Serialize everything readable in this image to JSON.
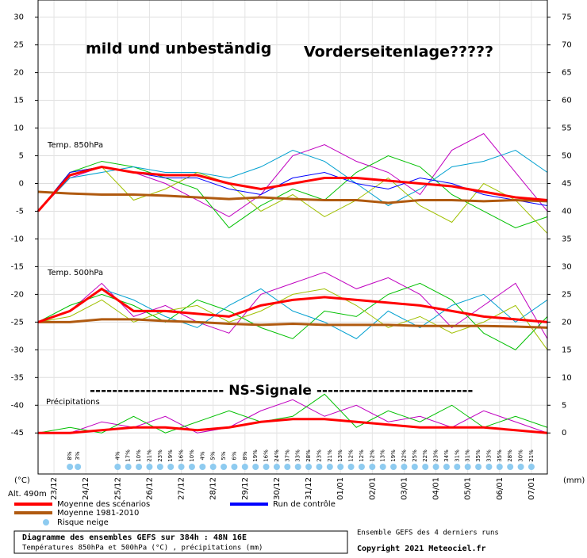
{
  "chart_data": {
    "type": "line",
    "annotations": [
      "mild und unbeständig",
      "Vorderseitenlage?????",
      "------------------------ NS-Signale ----------------------------"
    ],
    "panel_labels": [
      "Temp. 850hPa",
      "Temp. 500hPa",
      "Précipitations"
    ],
    "ylabel": "(°C)",
    "y2label": "(mm)",
    "altitude": "Alt. 490m",
    "footer": {
      "title": "Diagramme des ensembles GEFS sur 384h : 48N 16E",
      "subtitle": "Températures 850hPa et 500hPa (°C) , précipitations (mm)",
      "note": "Ensemble GEFS des 4 derniers runs",
      "copyright": "Copyright 2021 Meteociel.fr"
    },
    "xlim": [
      0,
      384
    ],
    "xticks": [
      {
        "value": 12,
        "label": "23/12"
      },
      {
        "value": 36,
        "label": "24/12"
      },
      {
        "value": 60,
        "label": "25/12"
      },
      {
        "value": 84,
        "label": "26/12"
      },
      {
        "value": 108,
        "label": "27/12"
      },
      {
        "value": 132,
        "label": "28/12"
      },
      {
        "value": 156,
        "label": "29/12"
      },
      {
        "value": 180,
        "label": "30/12"
      },
      {
        "value": 204,
        "label": "31/12"
      },
      {
        "value": 228,
        "label": "01/01"
      },
      {
        "value": 252,
        "label": "02/01"
      },
      {
        "value": 276,
        "label": "03/01"
      },
      {
        "value": 300,
        "label": "04/01"
      },
      {
        "value": 324,
        "label": "05/01"
      },
      {
        "value": 348,
        "label": "06/01"
      },
      {
        "value": 372,
        "label": "07/01"
      }
    ],
    "ylim": [
      -52.4,
      33.1
    ],
    "yticks": [
      30,
      25,
      20,
      15,
      10,
      5,
      0,
      -5,
      -10,
      -15,
      -20,
      -25,
      -30,
      -35,
      -40,
      -45
    ],
    "y2lim": [
      -7.4,
      78.1
    ],
    "y2ticks": [
      75,
      70,
      65,
      60,
      55,
      50,
      45,
      40,
      35,
      30,
      25,
      20,
      15,
      10,
      5,
      0
    ],
    "grid": true,
    "x": [
      0,
      24,
      48,
      72,
      96,
      120,
      144,
      168,
      192,
      216,
      240,
      264,
      288,
      312,
      336,
      360,
      384
    ],
    "series": [
      {
        "color": "#c000c0",
        "values": [
          -5,
          1,
          3,
          2,
          0,
          -3,
          -6,
          -2,
          5,
          7,
          4,
          2,
          -2,
          6,
          9,
          2,
          -5
        ]
      },
      {
        "color": "#00c000",
        "values": [
          -5,
          2,
          4,
          3,
          1,
          -1,
          -8,
          -4,
          -1,
          -3,
          2,
          5,
          3,
          -2,
          -5,
          -8,
          -6
        ]
      },
      {
        "color": "#00a0d0",
        "values": [
          -5,
          1,
          2,
          3,
          2,
          2,
          1,
          3,
          6,
          4,
          0,
          -4,
          -1,
          3,
          4,
          6,
          2
        ]
      },
      {
        "color": "#a0c000",
        "values": [
          -5,
          2,
          3,
          -3,
          -1,
          2,
          0,
          -5,
          -2,
          -6,
          -3,
          1,
          -4,
          -7,
          0,
          -3,
          -9
        ]
      },
      {
        "color": "#c000c0",
        "values": [
          -25,
          -23,
          -18,
          -24,
          -22,
          -25,
          -27,
          -20,
          -18,
          -16,
          -19,
          -17,
          -20,
          -26,
          -22,
          -18,
          -28
        ]
      },
      {
        "color": "#00c000",
        "values": [
          -25,
          -22,
          -20,
          -22,
          -25,
          -21,
          -23,
          -26,
          -28,
          -23,
          -24,
          -20,
          -18,
          -21,
          -27,
          -30,
          -24
        ]
      },
      {
        "color": "#00a0d0",
        "values": [
          -25,
          -23,
          -19,
          -21,
          -24,
          -26,
          -22,
          -19,
          -23,
          -25,
          -28,
          -23,
          -26,
          -22,
          -20,
          -25,
          -21
        ]
      },
      {
        "color": "#a0c000",
        "values": [
          -25,
          -24,
          -21,
          -25,
          -23,
          -22,
          -25,
          -23,
          -20,
          -19,
          -22,
          -26,
          -24,
          -27,
          -25,
          -22,
          -30
        ]
      },
      {
        "color": "#c000c0",
        "axis": "y2",
        "values": [
          0,
          0,
          2,
          1,
          3,
          0,
          1,
          4,
          6,
          3,
          5,
          2,
          3,
          1,
          4,
          2,
          0
        ]
      },
      {
        "color": "#00c000",
        "axis": "y2",
        "values": [
          0,
          1,
          0,
          3,
          0,
          2,
          4,
          2,
          3,
          7,
          1,
          4,
          2,
          5,
          1,
          3,
          1
        ]
      },
      {
        "name": "Run de contrôle",
        "color": "#0000ff",
        "values": [
          -5,
          2,
          3,
          2,
          1,
          1,
          -1,
          -2,
          1,
          2,
          0,
          -1,
          1,
          0,
          -2,
          -3,
          -4
        ]
      },
      {
        "name": "Moyenne 1981-2010",
        "color": "#b05a10",
        "values": [
          -1.5,
          -1.8,
          -2,
          -2,
          -2.2,
          -2.5,
          -2.8,
          -2.5,
          -2.8,
          -3,
          -3,
          -3.5,
          -3,
          -3,
          -3.2,
          -3,
          -3.2
        ]
      },
      {
        "name": "Moyenne 1981-2010",
        "color": "#b05a10",
        "values": [
          -25,
          -25,
          -24.5,
          -24.5,
          -24.8,
          -25,
          -25.3,
          -25.5,
          -25.3,
          -25.5,
          -25.5,
          -25.5,
          -25.7,
          -25.7,
          -25.7,
          -25.8,
          -26
        ]
      },
      {
        "name": "Moyenne des scénarios",
        "color": "#ff0000",
        "values": [
          -5,
          1.5,
          3,
          2,
          1.5,
          1.5,
          0,
          -1,
          0,
          1,
          1,
          0.5,
          0,
          -0.5,
          -1.5,
          -2.5,
          -3
        ]
      },
      {
        "name": "Moyenne des scénarios",
        "color": "#ff0000",
        "values": [
          -25,
          -23,
          -19,
          -23,
          -23,
          -23.5,
          -24,
          -22,
          -21,
          -20.5,
          -21,
          -21.5,
          -22,
          -23,
          -24,
          -24.5,
          -25
        ]
      },
      {
        "name": "Moyenne des scénarios",
        "color": "#ff0000",
        "axis": "y2",
        "values": [
          0,
          0,
          0.5,
          1,
          1,
          0.5,
          1,
          2,
          2.5,
          2.5,
          2,
          1.5,
          1,
          1,
          1,
          0.5,
          0
        ]
      }
    ],
    "snow_risk": {
      "name": "Risque neige",
      "color": "#8ecbf0",
      "x": [
        24,
        30,
        60,
        68,
        76,
        84,
        92,
        100,
        108,
        116,
        124,
        132,
        140,
        148,
        156,
        164,
        172,
        180,
        188,
        196,
        204,
        212,
        220,
        228,
        236,
        244,
        252,
        260,
        268,
        276,
        284,
        292,
        300,
        308,
        316,
        324,
        332,
        340,
        348,
        356,
        364,
        372
      ],
      "values": [
        8,
        3,
        4,
        17,
        10,
        21,
        23,
        19,
        16,
        10,
        4,
        5,
        5,
        6,
        8,
        19,
        16,
        24,
        37,
        33,
        28,
        23,
        21,
        13,
        12,
        12,
        12,
        13,
        19,
        22,
        25,
        22,
        23,
        34,
        31,
        31,
        35,
        33,
        35,
        28,
        30,
        21
      ],
      "value_labels": [
        "8%",
        "3%",
        "4%",
        "17%",
        "10%",
        "21%",
        "23%",
        "19%",
        "16%",
        "10%",
        "4%",
        "5%",
        "5%",
        "6%",
        "8%",
        "19%",
        "16%",
        "24%",
        "37%",
        "33%",
        "28%",
        "23%",
        "21%",
        "13%",
        "12%",
        "12%",
        "12%",
        "13%",
        "19%",
        "22%",
        "25%",
        "22%",
        "23%",
        "34%",
        "31%",
        "31%",
        "35%",
        "33%",
        "35%",
        "28%",
        "30%",
        "21%"
      ]
    }
  }
}
